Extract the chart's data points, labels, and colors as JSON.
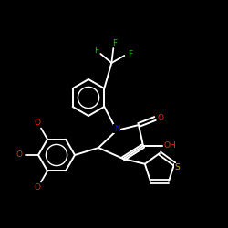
{
  "bg_color": "#000000",
  "bond_color": "#ffffff",
  "atom_colors": {
    "F": "#00cc00",
    "O": "#ff2200",
    "N": "#0000ff",
    "S": "#ccaa00",
    "C": "#ffffff",
    "H": "#ffffff"
  },
  "figsize": [
    2.5,
    2.5
  ],
  "dpi": 100,
  "xlim": [
    0,
    250
  ],
  "ylim": [
    0,
    250
  ]
}
